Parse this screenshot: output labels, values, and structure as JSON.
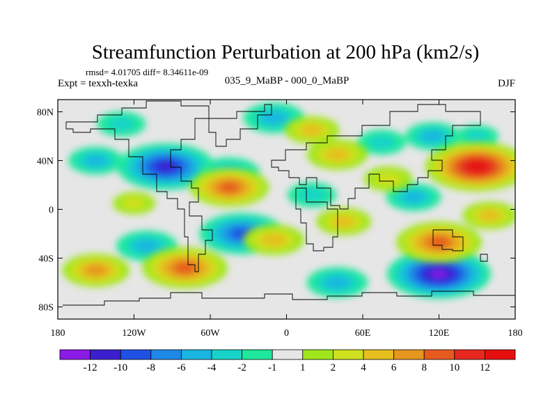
{
  "chart_data": {
    "type": "heatmap",
    "title": "Streamfunction Perturbation at 200 hPa (km2/s)",
    "stats_text": "rmsd= 4.01705 diff= 8.34611e-09",
    "left_label": "Expt = texxh-texka",
    "center_label": "035_9_MaBP - 000_0_MaBP",
    "right_label": "DJF",
    "xlim": [
      -180,
      180
    ],
    "ylim": [
      -90,
      90
    ],
    "x_ticks": [
      {
        "value": -180,
        "label": "180"
      },
      {
        "value": -120,
        "label": "120W"
      },
      {
        "value": -60,
        "label": "60W"
      },
      {
        "value": 0,
        "label": "0"
      },
      {
        "value": 60,
        "label": "60E"
      },
      {
        "value": 120,
        "label": "120E"
      },
      {
        "value": 180,
        "label": "180"
      }
    ],
    "y_ticks": [
      {
        "value": 80,
        "label": "80N"
      },
      {
        "value": 40,
        "label": "40N"
      },
      {
        "value": 0,
        "label": "0"
      },
      {
        "value": -40,
        "label": "40S"
      },
      {
        "value": -80,
        "label": "80S"
      }
    ],
    "colorbar": {
      "levels": [
        -12,
        -10,
        -8,
        -6,
        -4,
        -2,
        -1,
        1,
        2,
        4,
        6,
        8,
        10,
        12
      ],
      "labels": [
        "-12",
        "-10",
        "-8",
        "-6",
        "-4",
        "-2",
        "-1",
        "1",
        "2",
        "4",
        "6",
        "8",
        "10",
        "12"
      ],
      "colors": [
        "#8b1ae5",
        "#3b1fcf",
        "#1f51e3",
        "#1e88e6",
        "#18b6e0",
        "#18d4c8",
        "#1ee89c",
        "#e6e6e6",
        "#a0e61c",
        "#cfe01e",
        "#e6be1e",
        "#e6951e",
        "#e65a1e",
        "#e6281e",
        "#e60f0f"
      ]
    },
    "anomaly_centers": [
      {
        "lon": -95,
        "lat": 35,
        "value": -11
      },
      {
        "lon": -45,
        "lat": 30,
        "value": -5
      },
      {
        "lon": -150,
        "lat": 40,
        "value": -4
      },
      {
        "lon": -35,
        "lat": -20,
        "value": -9
      },
      {
        "lon": -110,
        "lat": -30,
        "value": -5
      },
      {
        "lon": 20,
        "lat": 12,
        "value": -3
      },
      {
        "lon": -10,
        "lat": 75,
        "value": -5
      },
      {
        "lon": -130,
        "lat": 70,
        "value": -3
      },
      {
        "lon": 75,
        "lat": 55,
        "value": -3
      },
      {
        "lon": 115,
        "lat": 60,
        "value": -4
      },
      {
        "lon": 100,
        "lat": 10,
        "value": -4
      },
      {
        "lon": 120,
        "lat": -53,
        "value": -12
      },
      {
        "lon": 40,
        "lat": -60,
        "value": -5
      },
      {
        "lon": 150,
        "lat": 60,
        "value": -2
      },
      {
        "lon": 150,
        "lat": 35,
        "value": 12
      },
      {
        "lon": -45,
        "lat": 18,
        "value": 8
      },
      {
        "lon": -80,
        "lat": -48,
        "value": 9
      },
      {
        "lon": -150,
        "lat": -50,
        "value": 6
      },
      {
        "lon": -10,
        "lat": -25,
        "value": 5
      },
      {
        "lon": 120,
        "lat": -27,
        "value": 9
      },
      {
        "lon": 40,
        "lat": 45,
        "value": 5
      },
      {
        "lon": 20,
        "lat": 65,
        "value": 4
      },
      {
        "lon": 160,
        "lat": -5,
        "value": 4
      },
      {
        "lon": 45,
        "lat": -10,
        "value": 4
      },
      {
        "lon": 80,
        "lat": 25,
        "value": 3
      },
      {
        "lon": -120,
        "lat": 5,
        "value": 2
      }
    ]
  }
}
